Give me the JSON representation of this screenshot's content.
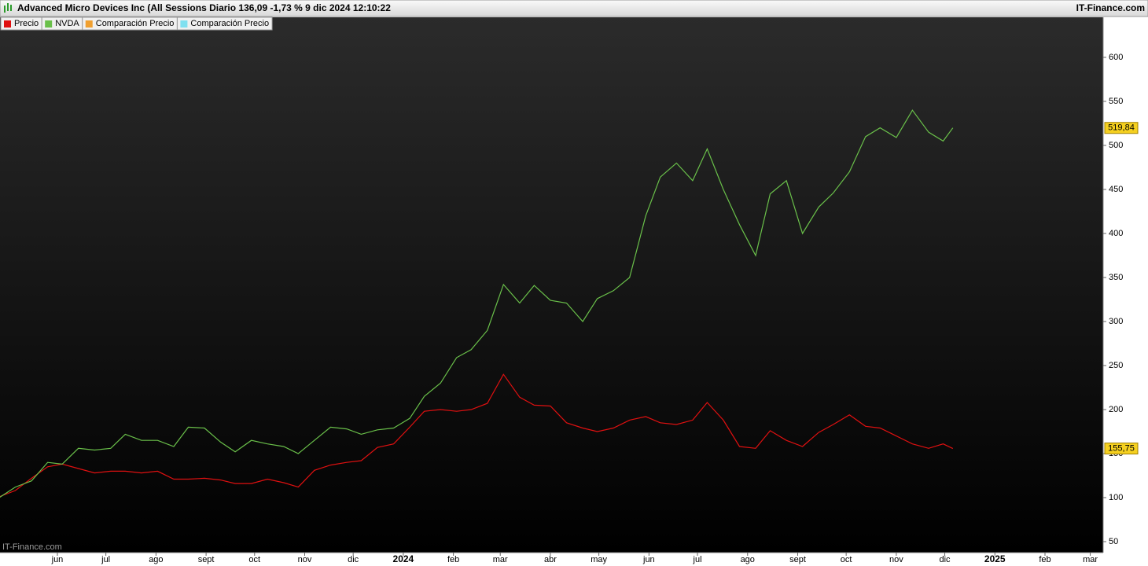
{
  "chart_data": {
    "type": "line",
    "title": "Advanced Micro Devices Inc (All Sessions Diario 136,09 -1,73 % 9 dic 2024 12:10:22",
    "source": "IT-Finance.com",
    "watermark": "IT-Finance.com",
    "x": [
      -36,
      -26,
      -16,
      -6,
      3,
      13,
      23,
      33,
      42,
      52,
      62,
      72,
      81,
      91,
      101,
      110,
      120,
      130,
      140,
      149,
      159,
      169,
      179,
      188,
      198,
      208,
      218,
      227,
      237,
      247,
      256,
      266,
      276,
      286,
      295,
      305,
      315,
      325,
      334,
      344,
      354,
      364,
      373,
      383,
      393,
      402,
      412,
      422,
      432,
      441,
      451,
      461,
      471,
      480,
      490,
      500,
      509,
      519,
      529,
      539,
      548,
      554
    ],
    "series": [
      {
        "name": "Precio",
        "color": "#e01010",
        "last_label": "155,75",
        "values": [
          101,
          108,
          122,
          135,
          138,
          133,
          128,
          130,
          130,
          128,
          130,
          121,
          121,
          122,
          120,
          116,
          116,
          121,
          117,
          112,
          131,
          137,
          140,
          142,
          157,
          161,
          180,
          198,
          200,
          198,
          200,
          207,
          240,
          214,
          205,
          204,
          185,
          179,
          175,
          179,
          188,
          192,
          185,
          183,
          188,
          208,
          188,
          158,
          156,
          176,
          165,
          158,
          174,
          183,
          194,
          181,
          179,
          170,
          161,
          156,
          161,
          155.75
        ]
      },
      {
        "name": "NVDA",
        "color": "#6ac04a",
        "last_label": "519,84",
        "values": [
          100,
          112,
          119,
          140,
          138,
          156,
          154,
          156,
          172,
          165,
          165,
          158,
          180,
          179,
          163,
          152,
          165,
          161,
          158,
          150,
          165,
          180,
          178,
          172,
          177,
          179,
          190,
          215,
          230,
          259,
          268,
          290,
          342,
          321,
          341,
          324,
          321,
          300,
          326,
          335,
          350,
          420,
          464,
          480,
          460,
          496,
          450,
          410,
          375,
          445,
          460,
          400,
          430,
          446,
          470,
          510,
          520,
          509,
          540,
          515,
          505,
          519.84
        ]
      }
    ],
    "legend_extra": [
      {
        "name": "Comparación Precio",
        "color": "#f0a030"
      },
      {
        "name": "Comparación Precio",
        "color": "#80e0f0"
      }
    ],
    "xlim": [
      -35.5,
      647
    ],
    "xticks": [
      {
        "value": 0,
        "label": "jun"
      },
      {
        "value": 30,
        "label": "jul"
      },
      {
        "value": 61,
        "label": "ago"
      },
      {
        "value": 92,
        "label": "sept"
      },
      {
        "value": 122,
        "label": "oct"
      },
      {
        "value": 153,
        "label": "nov"
      },
      {
        "value": 183,
        "label": "dic"
      },
      {
        "value": 214,
        "label": "2024"
      },
      {
        "value": 245,
        "label": "feb"
      },
      {
        "value": 274,
        "label": "mar"
      },
      {
        "value": 305,
        "label": "abr"
      },
      {
        "value": 335,
        "label": "may"
      },
      {
        "value": 366,
        "label": "jun"
      },
      {
        "value": 396,
        "label": "jul"
      },
      {
        "value": 427,
        "label": "ago"
      },
      {
        "value": 458,
        "label": "sept"
      },
      {
        "value": 488,
        "label": "oct"
      },
      {
        "value": 519,
        "label": "nov"
      },
      {
        "value": 549,
        "label": "dic"
      },
      {
        "value": 580,
        "label": "2025"
      },
      {
        "value": 611,
        "label": "feb"
      },
      {
        "value": 639,
        "label": "mar"
      }
    ],
    "ylim": [
      37.5,
      645.5
    ],
    "yticks": [
      50,
      100,
      150,
      200,
      250,
      300,
      350,
      400,
      450,
      500,
      550,
      600
    ],
    "grid": false
  }
}
